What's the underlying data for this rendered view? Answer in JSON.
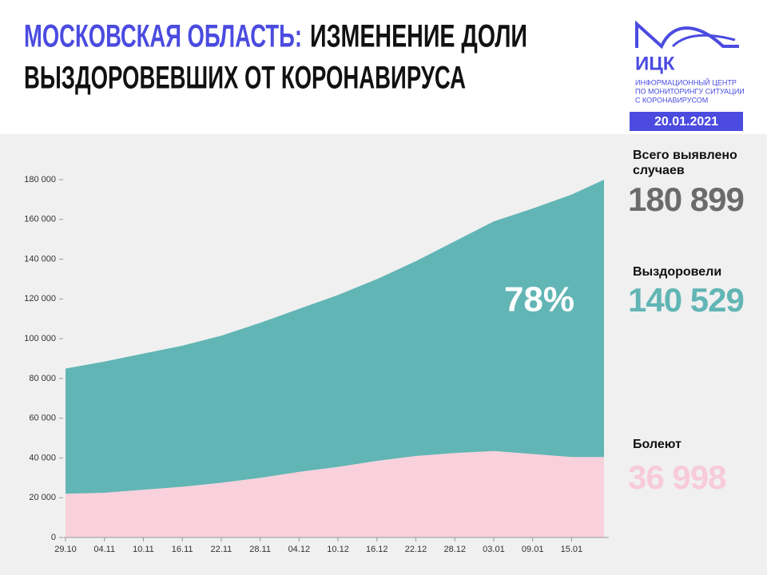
{
  "header": {
    "title_highlight": "МОСКОВСКАЯ ОБЛАСТЬ:",
    "title_rest": "ИЗМЕНЕНИЕ ДОЛИ",
    "title_line2": "ВЫЗДОРОВЕВШИХ ОТ КОРОНАВИРУСА"
  },
  "logo": {
    "name": "ИЦК",
    "lines": [
      "ИНФОРМАЦИОННЫЙ ЦЕНТР",
      "ПО МОНИТОРИНГУ СИТУАЦИИ",
      "С КОРОНАВИРУСОМ"
    ],
    "date": "20.01.2021"
  },
  "panel": {
    "total_label": "Всего выявлено случаев",
    "total": "180 899",
    "recovered": "140 529",
    "sick": "36 998"
  },
  "chart_data": {
    "type": "stacked_area",
    "annotation": "78%",
    "x": [
      0,
      6,
      12,
      18,
      24,
      30,
      36,
      42,
      48,
      54,
      60,
      66,
      72,
      78,
      83
    ],
    "series": [
      {
        "name": "Болеют",
        "color": "#f8d1dc",
        "values": [
          22000,
          22500,
          24000,
          25500,
          27500,
          30000,
          33000,
          35500,
          38500,
          41000,
          42500,
          43500,
          42000,
          40500,
          40500
        ]
      },
      {
        "name": "Выздоровели",
        "color": "#62b5b5",
        "values": [
          63000,
          66000,
          68500,
          71000,
          74000,
          78000,
          82000,
          86500,
          91500,
          98000,
          106500,
          115500,
          123500,
          132000,
          139500
        ]
      }
    ],
    "xlim": [
      0,
      83
    ],
    "xticks": [
      {
        "value": 0,
        "label": "29.10"
      },
      {
        "value": 6,
        "label": "04.11"
      },
      {
        "value": 12,
        "label": "10.11"
      },
      {
        "value": 18,
        "label": "16.11"
      },
      {
        "value": 24,
        "label": "22.11"
      },
      {
        "value": 30,
        "label": "28.11"
      },
      {
        "value": 36,
        "label": "04.12"
      },
      {
        "value": 42,
        "label": "10.12"
      },
      {
        "value": 48,
        "label": "16.12"
      },
      {
        "value": 54,
        "label": "22.12"
      },
      {
        "value": 60,
        "label": "28.12"
      },
      {
        "value": 66,
        "label": "03.01"
      },
      {
        "value": 72,
        "label": "09.01"
      },
      {
        "value": 78,
        "label": "15.01"
      }
    ],
    "ylim": [
      0,
      180000
    ],
    "yticks": [
      0,
      {
        "value": 20000,
        "label": "20 000"
      },
      {
        "value": 40000,
        "label": "40 000"
      },
      {
        "value": 60000,
        "label": "60 000"
      },
      {
        "value": 80000,
        "label": "80 000"
      },
      {
        "value": 100000,
        "label": "100 000"
      },
      {
        "value": 120000,
        "label": "120 000"
      },
      {
        "value": 140000,
        "label": "140 000"
      },
      {
        "value": 160000,
        "label": "160 000"
      },
      {
        "value": 180000,
        "label": "180 000"
      }
    ]
  }
}
